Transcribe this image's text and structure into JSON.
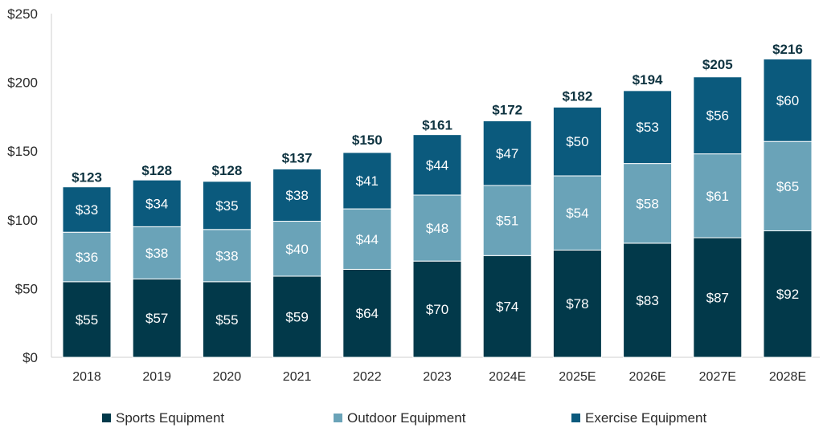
{
  "chart_data": {
    "type": "bar",
    "stacked": true,
    "categories": [
      "2018",
      "2019",
      "2020",
      "2021",
      "2022",
      "2023",
      "2024E",
      "2025E",
      "2026E",
      "2027E",
      "2028E"
    ],
    "series": [
      {
        "name": "Sports Equipment",
        "color": "#02394a",
        "values": [
          55,
          57,
          55,
          59,
          64,
          70,
          74,
          78,
          83,
          87,
          92
        ]
      },
      {
        "name": "Outdoor Equipment",
        "color": "#6aa3b8",
        "values": [
          36,
          38,
          38,
          40,
          44,
          48,
          51,
          54,
          58,
          61,
          65
        ]
      },
      {
        "name": "Exercise Equipment",
        "color": "#0b5a7d",
        "values": [
          33,
          34,
          35,
          38,
          41,
          44,
          47,
          50,
          53,
          56,
          60
        ]
      }
    ],
    "totals": [
      123,
      128,
      128,
      137,
      150,
      161,
      172,
      182,
      194,
      205,
      216
    ],
    "ylim": [
      0,
      250
    ],
    "yticks": [
      0,
      50,
      100,
      150,
      200,
      250
    ],
    "ytick_labels": [
      "$0",
      "$50",
      "$100",
      "$150",
      "$200",
      "$250"
    ],
    "value_prefix": "$",
    "legend_position": "bottom",
    "grid": false
  }
}
